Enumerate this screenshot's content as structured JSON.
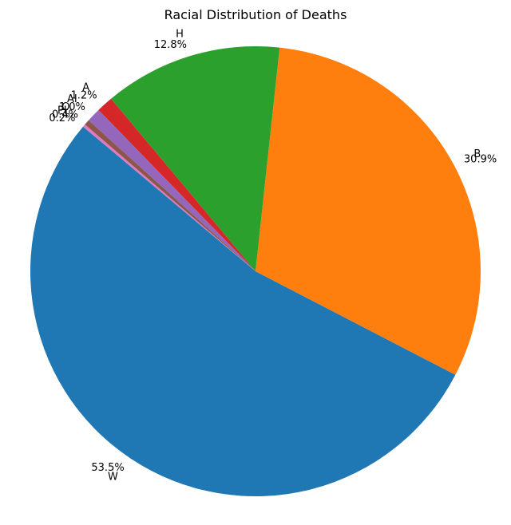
{
  "chart_data": {
    "type": "pie",
    "title": "Racial Distribution of Deaths",
    "start_angle_deg": 140,
    "direction": "counterclockwise",
    "slices": [
      {
        "label": "W",
        "value": 53.5,
        "pct_label": "53.5%",
        "color": "#1f77b4"
      },
      {
        "label": "B",
        "value": 30.9,
        "pct_label": "30.9%",
        "color": "#ff7f0e"
      },
      {
        "label": "H",
        "value": 12.8,
        "pct_label": "12.8%",
        "color": "#2ca02c"
      },
      {
        "label": "A",
        "value": 1.2,
        "pct_label": "1.2%",
        "color": "#d62728"
      },
      {
        "label": "AI",
        "value": 1.0,
        "pct_label": "1.0%",
        "color": "#9467bd"
      },
      {
        "label": "O",
        "value": 0.4,
        "pct_label": "0.4%",
        "color": "#8c564b"
      },
      {
        "label": "PI",
        "value": 0.2,
        "pct_label": "0.2%",
        "color": "#e377c2"
      }
    ]
  }
}
